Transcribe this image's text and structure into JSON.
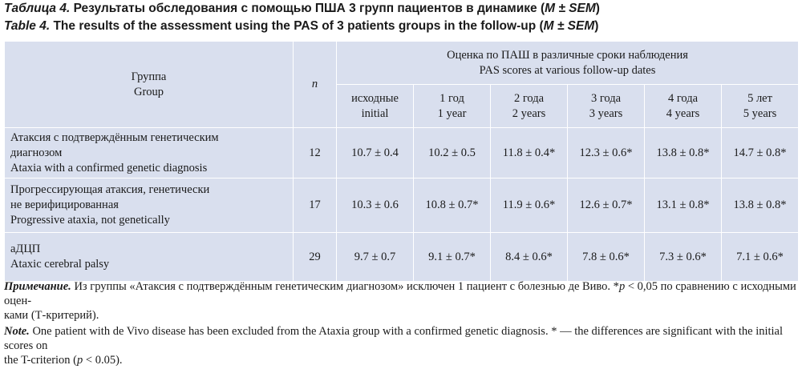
{
  "caption_ru": {
    "label": "Таблица 4.",
    "text": " Результаты обследования с помощью ПША 3 групп пациентов в динамике (",
    "mark": "M ± SEM",
    "close": ")"
  },
  "caption_en": {
    "label": "Table 4.",
    "text": " The results of the assessment using the PAS of 3 patients groups in the follow-up (",
    "mark": "M ± SEM",
    "close": ")"
  },
  "table": {
    "group_header_ru": "Группа",
    "group_header_en": "Group",
    "n_header": "n",
    "scores_header_ru": "Оценка по ПАШ в различные сроки наблюдения",
    "scores_header_en": "PAS scores at various follow-up dates",
    "columns": [
      {
        "ru": "исходные",
        "en": "initial"
      },
      {
        "ru": "1 год",
        "en": "1 year"
      },
      {
        "ru": "2 года",
        "en": "2 years"
      },
      {
        "ru": "3 года",
        "en": "3 years"
      },
      {
        "ru": "4 года",
        "en": "4 years"
      },
      {
        "ru": "5 лет",
        "en": "5 years"
      }
    ],
    "rows": [
      {
        "ru1": "Атаксия с подтверждённым генетическим",
        "ru2": "диагнозом",
        "en": "Ataxia with a confirmed genetic diagnosis",
        "n": "12",
        "values": [
          "10.7 ± 0.4",
          "10.2 ± 0.5",
          "11.8 ± 0.4*",
          "12.3 ± 0.6*",
          "13.8 ± 0.8*",
          "14.7 ± 0.8*"
        ]
      },
      {
        "ru1": "Прогрессирующая атаксия, генетически",
        "ru2": "не верифицированная",
        "en": "Progressive ataxia, not genetically",
        "n": "17",
        "values": [
          "10.3 ± 0.6",
          "10.8 ± 0.7*",
          "11.9 ± 0.6*",
          "12.6 ± 0.7*",
          "13.1 ± 0.8*",
          "13.8 ± 0.8*"
        ]
      },
      {
        "ru1": "аДЦП",
        "ru2": "",
        "en": "Ataxic cerebral palsy",
        "n": "29",
        "values": [
          "9.7 ± 0.7",
          "9.1 ± 0.7*",
          "8.4 ± 0.6*",
          "7.8 ± 0.6*",
          "7.3 ± 0.6*",
          "7.1 ± 0.6*"
        ]
      }
    ]
  },
  "note_ru": {
    "label": "Примечание.",
    "text1": " Из группы «Атаксия с подтверждённым генетическим диагнозом» исключен 1 пациент с болезнью де Виво. *",
    "p": "p",
    "text2": " < 0,05 по сравнению с исходными оцен-",
    "line2": "ками (Т-критерий)."
  },
  "note_en": {
    "label": "Note.",
    "text1": " One patient with de Vivo disease has been excluded from the Ataxia group with a confirmed genetic diagnosis. * — the differences are significant with the initial scores on",
    "line2a": "the T-criterion (",
    "p": "p",
    "line2b": " < 0.05)."
  }
}
